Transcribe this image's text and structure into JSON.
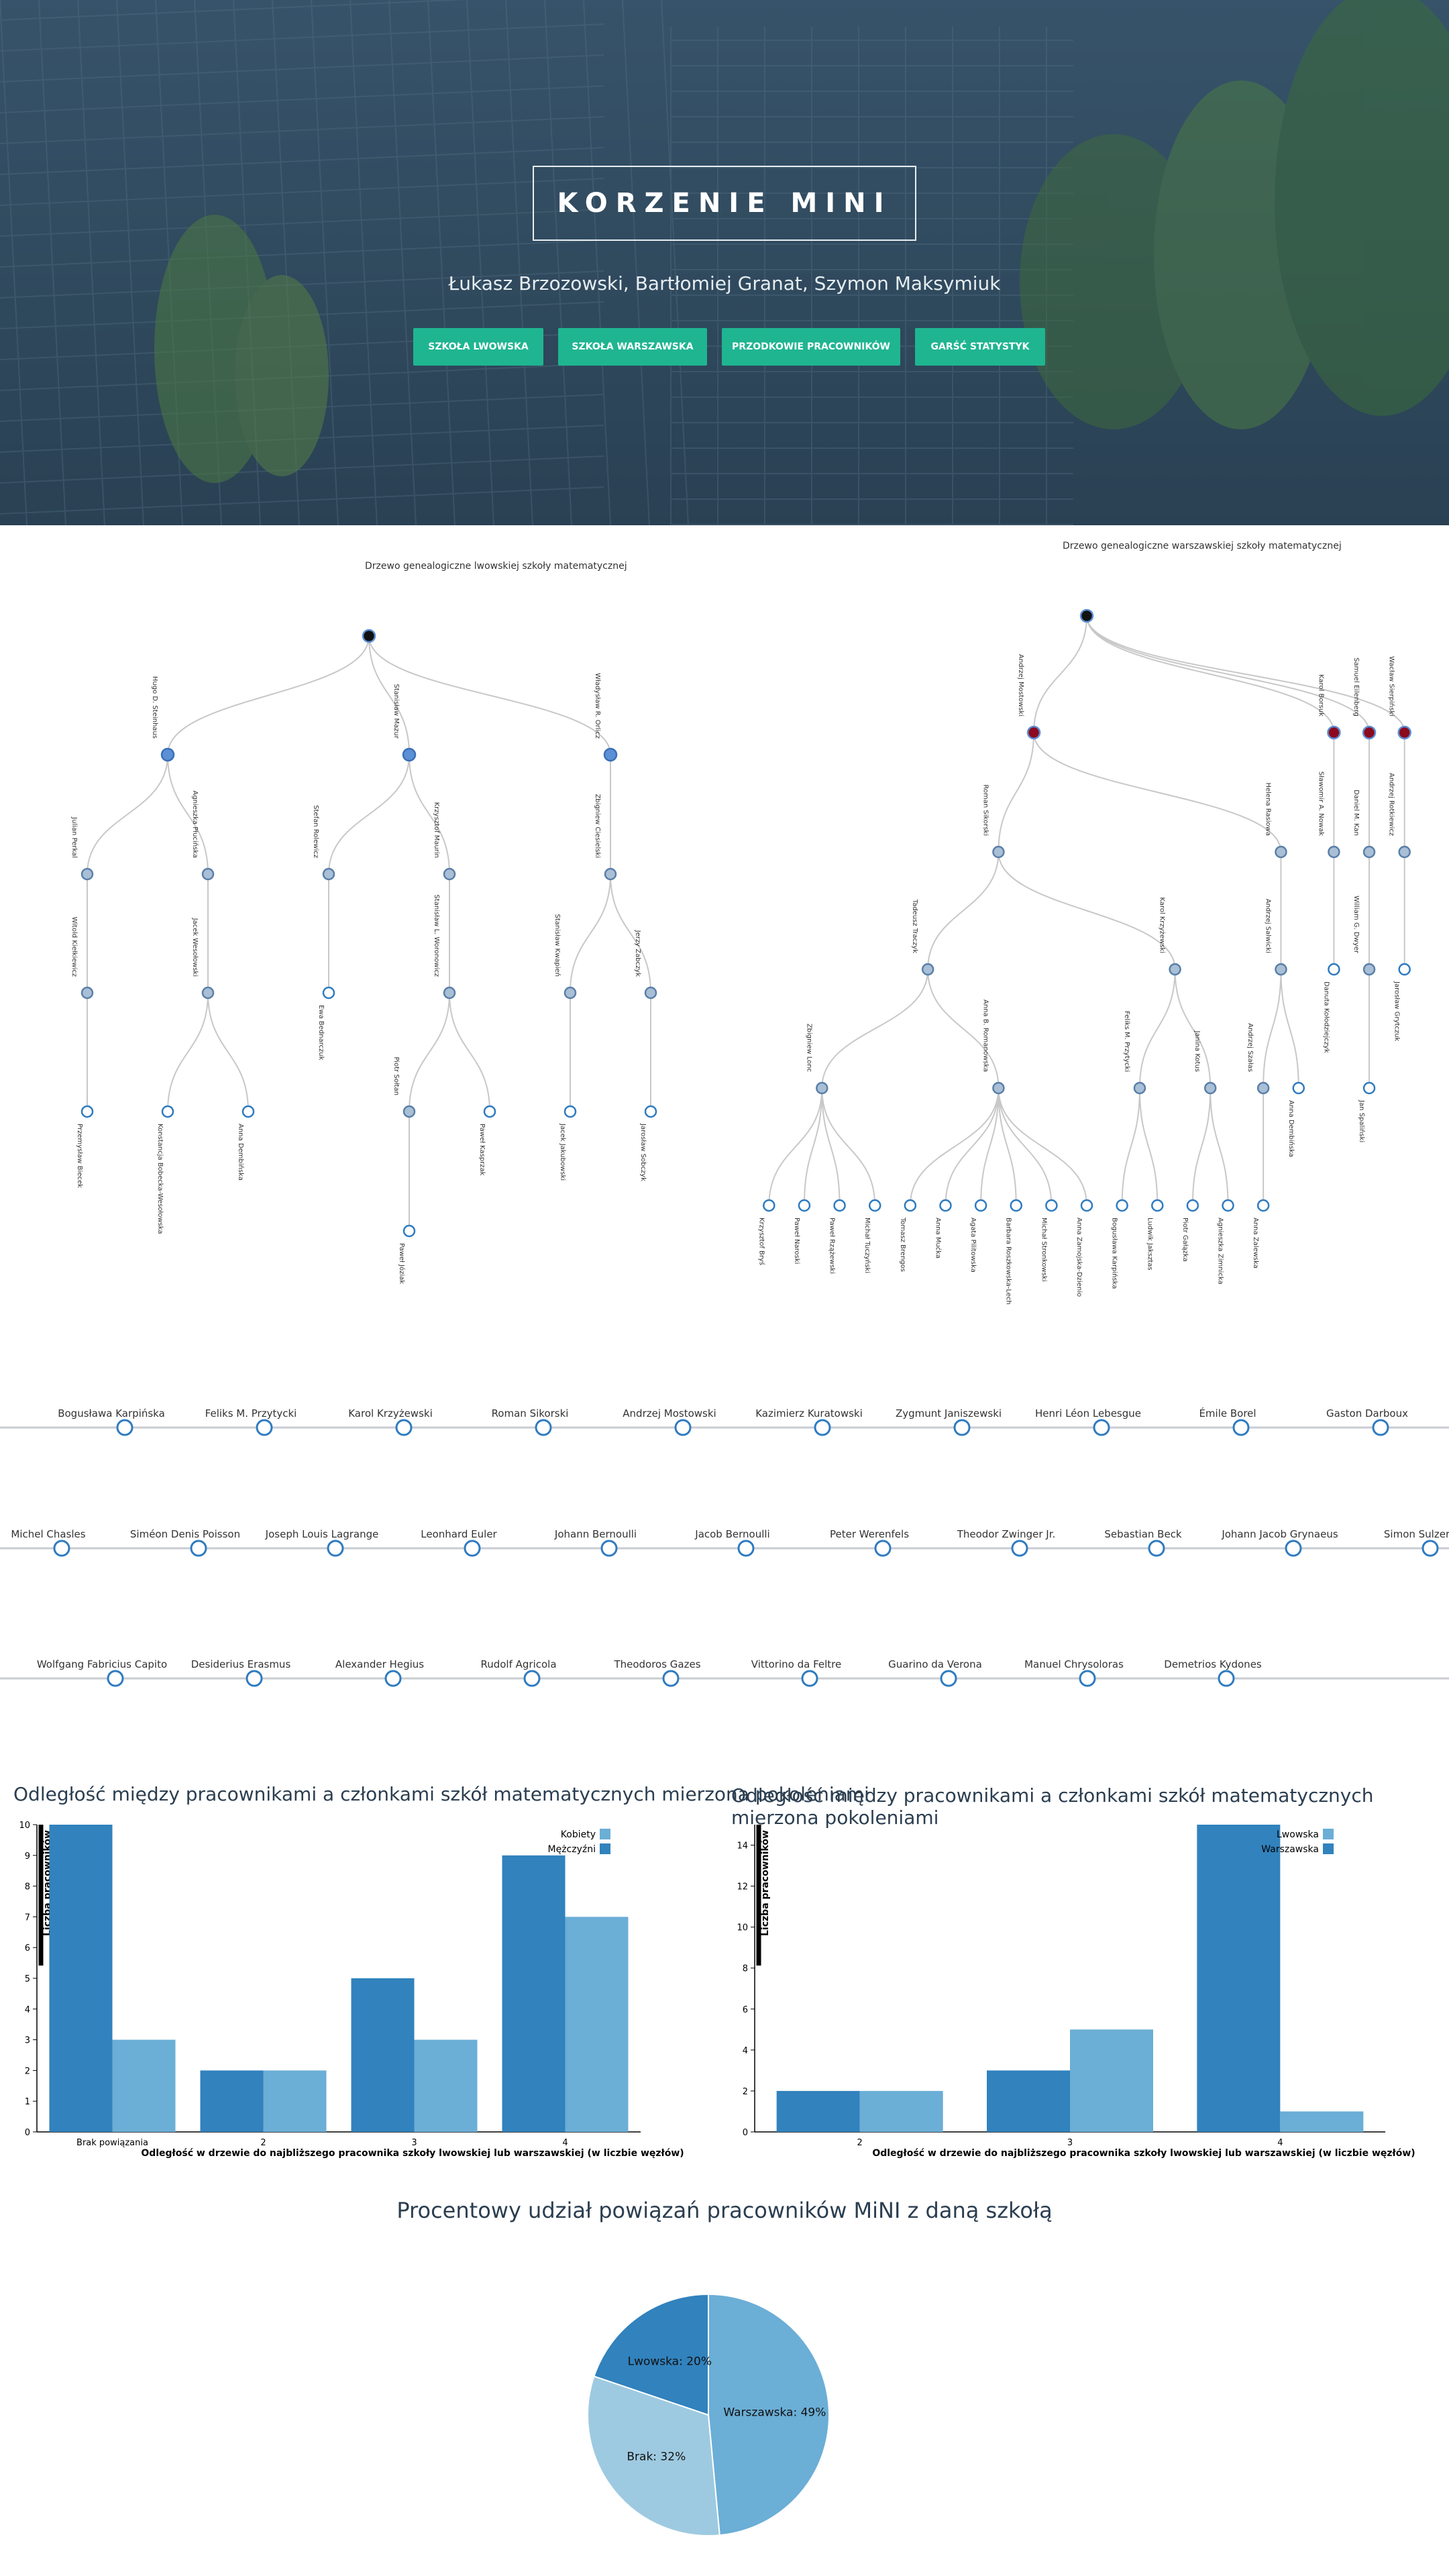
{
  "hero": {
    "title": "KORZENIE MINI",
    "authors": "Łukasz Brzozowski, Bartłomiej Granat, Szymon Maksymiuk",
    "buttons": [
      "SZKOŁA LWOWSKA",
      "SZKOŁA WARSZAWSKA",
      "PRZODKOWIE PRACOWNIKÓW",
      "GARŚĆ STATYSTYK"
    ]
  },
  "trees": {
    "lwow_title": "Drzewo genealogiczne lwowskiej szkoły matematycznej",
    "warsaw_title": "Drzewo genealogiczne warszawskiej szkoły matematycznej",
    "lwow": {
      "name": "",
      "children": [
        {
          "name": "Hugo D. Steinhaus",
          "children": [
            {
              "name": "Julian Perkal",
              "children": [
                {
                  "name": "Witold Kiełkiewicz",
                  "children": [
                    {
                      "name": "Przemysław Biecek",
                      "children": []
                    }
                  ]
                }
              ]
            },
            {
              "name": "Agnieszka Płucińska",
              "children": [
                {
                  "name": "Jacek Wesołowski",
                  "children": [
                    {
                      "name": "Konstancja Bobecka-Wesołowska",
                      "children": []
                    },
                    {
                      "name": "Anna Dembińska",
                      "children": []
                    }
                  ]
                }
              ]
            }
          ]
        },
        {
          "name": "Stanisław Mazur",
          "children": [
            {
              "name": "Stefan Rolewicz",
              "children": [
                {
                  "name": "Ewa Bednarczuk",
                  "children": []
                }
              ]
            },
            {
              "name": "Krzysztof Maurin",
              "children": [
                {
                  "name": "Stanisław L. Woronowicz",
                  "children": [
                    {
                      "name": "Piotr Sołtan",
                      "children": [
                        {
                          "name": "Paweł Józiak",
                          "children": []
                        }
                      ]
                    },
                    {
                      "name": "Paweł Kasprzak",
                      "children": []
                    }
                  ]
                }
              ]
            }
          ]
        },
        {
          "name": "Władysław R. Orlicz",
          "children": [
            {
              "name": "Zbigniew Ciesielski",
              "children": [
                {
                  "name": "Stanisław Kwapień",
                  "children": [
                    {
                      "name": "Jacek Jakubowski",
                      "children": []
                    }
                  ]
                },
                {
                  "name": "Jerzy Zabczyk",
                  "children": [
                    {
                      "name": "Jarosław Sobczyk",
                      "children": []
                    }
                  ]
                }
              ]
            }
          ]
        }
      ]
    },
    "warsaw": {
      "name": "",
      "children": [
        {
          "name": "Andrzej Mostowski",
          "children": [
            {
              "name": "Roman Sikorski",
              "children": [
                {
                  "name": "Tadeusz Traczyk",
                  "children": [
                    {
                      "name": "Zbigniew Lonc",
                      "children": [
                        {
                          "name": "Krzysztof Bryś",
                          "children": []
                        },
                        {
                          "name": "Paweł Naroski",
                          "children": []
                        },
                        {
                          "name": "Paweł Rzążewski",
                          "children": []
                        },
                        {
                          "name": "Michał Tuczyński",
                          "children": []
                        }
                      ]
                    },
                    {
                      "name": "Anna B. Romanowska",
                      "children": [
                        {
                          "name": "Tomasz Brengos",
                          "children": []
                        },
                        {
                          "name": "Anna Mućka",
                          "children": []
                        },
                        {
                          "name": "Agata Pilitowska",
                          "children": []
                        },
                        {
                          "name": "Barbara Roszkowska-Lech",
                          "children": []
                        },
                        {
                          "name": "Michał Stronkowski",
                          "children": []
                        },
                        {
                          "name": "Anna Zamojska-Dzienio",
                          "children": []
                        }
                      ]
                    }
                  ]
                },
                {
                  "name": "Karol Krzyżewski",
                  "children": [
                    {
                      "name": "Feliks M. Przytycki",
                      "children": [
                        {
                          "name": "Bogusława Karpińska",
                          "children": []
                        },
                        {
                          "name": "Ludwik Jaksztas",
                          "children": []
                        }
                      ]
                    },
                    {
                      "name": "Janina Kotus",
                      "children": [
                        {
                          "name": "Piotr Gałązka",
                          "children": []
                        },
                        {
                          "name": "Agnieszka Zimnicka",
                          "children": []
                        }
                      ]
                    }
                  ]
                }
              ]
            },
            {
              "name": "Helena Rasiowa",
              "children": [
                {
                  "name": "Andrzej Salwicki",
                  "children": [
                    {
                      "name": "Andrzej Szałas",
                      "children": [
                        {
                          "name": "Anna Zalewska",
                          "children": []
                        }
                      ]
                    },
                    {
                      "name": "Anna Dembińska",
                      "children": []
                    }
                  ]
                }
              ]
            }
          ]
        },
        {
          "name": "Karol Borsuk",
          "children": [
            {
              "name": "Sławomir A. Nowak",
              "children": [
                {
                  "name": "Danuta Kołodziejczyk",
                  "children": []
                }
              ]
            }
          ]
        },
        {
          "name": "Samuel Eilenberg",
          "children": [
            {
              "name": "Daniel M. Kan",
              "children": [
                {
                  "name": "William G. Dwyer",
                  "children": [
                    {
                      "name": "Jan Spaliński",
                      "children": []
                    }
                  ]
                }
              ]
            }
          ]
        },
        {
          "name": "Wacław Sierpiński",
          "children": [
            {
              "name": "Andrzej Rotkiewicz",
              "children": [
                {
                  "name": "Jarosław Grytczuk",
                  "children": []
                }
              ]
            }
          ]
        }
      ]
    }
  },
  "chain": {
    "rows": [
      [
        "Bogusława Karpińska",
        "Feliks M. Przytycki",
        "Karol Krzyżewski",
        "Roman Sikorski",
        "Andrzej Mostowski",
        "Kazimierz Kuratowski",
        "Zygmunt Janiszewski",
        "Henri Léon Lebesgue",
        "Émile Borel",
        "Gaston Darboux"
      ],
      [
        "Michel Chasles",
        "Siméon Denis Poisson",
        "Joseph Louis Lagrange",
        "Leonhard Euler",
        "Johann Bernoulli",
        "Jacob Bernoulli",
        "Peter Werenfels",
        "Theodor Zwinger Jr.",
        "Sebastian Beck",
        "Johann Jacob Grynaeus",
        "Simon Sulzer"
      ],
      [
        "Wolfgang Fabricius Capito",
        "Desiderius Erasmus",
        "Alexander Hegius",
        "Rudolf Agricola",
        "Theodoros Gazes",
        "Vittorino da Feltre",
        "Guarino da Verona",
        "Manuel Chrysoloras",
        "Demetrios Kydones"
      ]
    ]
  },
  "colors": {
    "accent": "#1fb591",
    "dark_blue": "#3182bd",
    "mid_blue": "#6baed6",
    "light_blue": "#9ecae1",
    "warsaw_node": "#8b0a1e",
    "lwow_node": "#5b8fd6"
  },
  "chart_data": [
    {
      "type": "bar",
      "title": "Odległość między pracownikami a członkami szkół matematycznych mierzona pokoleniami",
      "xlabel": "Odległość w drzewie do najbliższego pracownika szkoły lwowskiej lub warszawskiej (w liczbie węzłów)",
      "ylabel": "Liczba pracowników",
      "categories": [
        "Brak powiązania",
        "2",
        "3",
        "4"
      ],
      "series": [
        {
          "name": "Mężczyźni",
          "values": [
            10,
            2,
            5,
            9
          ]
        },
        {
          "name": "Kobiety",
          "values": [
            3,
            2,
            3,
            7
          ]
        }
      ],
      "ylim": [
        0,
        10
      ],
      "legend": "top-right"
    },
    {
      "type": "bar",
      "title": "Odległość między pracownikami a członkami szkół matematycznych mierzona pokoleniami",
      "xlabel": "Odległość w drzewie do najbliższego pracownika szkoły lwowskiej lub warszawskiej (w liczbie węzłów)",
      "ylabel": "Liczba pracowników",
      "categories": [
        "2",
        "3",
        "4"
      ],
      "series": [
        {
          "name": "Warszawska",
          "values": [
            2,
            3,
            15
          ]
        },
        {
          "name": "Lwowska",
          "values": [
            2,
            5,
            1
          ]
        }
      ],
      "ylim": [
        0,
        15
      ],
      "legend": "top-right"
    },
    {
      "type": "pie",
      "title": "Procentowy udział powiązań pracowników MiNI z daną szkołą",
      "slices": [
        {
          "name": "Warszawska",
          "label": "Warszawska: 49%",
          "value": 49
        },
        {
          "name": "Brak",
          "label": "Brak: 32%",
          "value": 32
        },
        {
          "name": "Lwowska",
          "label": "Lwowska: 20%",
          "value": 20
        }
      ]
    }
  ]
}
